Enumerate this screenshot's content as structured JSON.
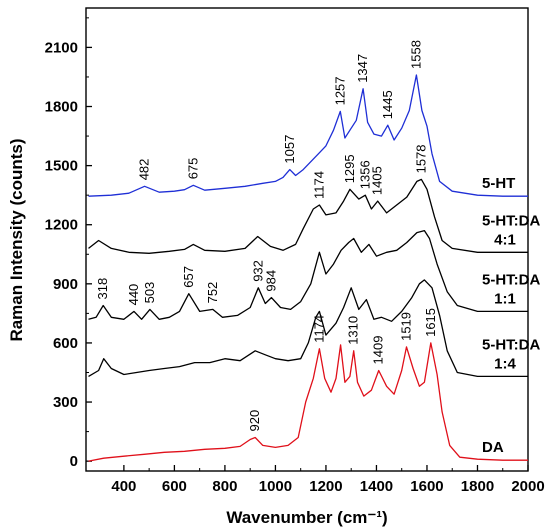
{
  "chart_data": {
    "type": "line",
    "xlabel": "Wavenumber (cm⁻¹)",
    "ylabel": "Raman Intensity (counts)",
    "xlim": [
      250,
      2000
    ],
    "ylim": [
      -50,
      2300
    ],
    "xticks": [
      400,
      600,
      800,
      1000,
      1200,
      1400,
      1600,
      1800,
      2000
    ],
    "yticks": [
      0,
      300,
      600,
      900,
      1200,
      1500,
      1800,
      2100
    ],
    "grid": false,
    "legend": "none (series labels printed at right)",
    "series": [
      {
        "name": "5-HT",
        "label_lines": [
          "5-HT"
        ],
        "color": "#1f2fd6",
        "points": [
          [
            260,
            1345
          ],
          [
            350,
            1350
          ],
          [
            420,
            1360
          ],
          [
            482,
            1395
          ],
          [
            540,
            1365
          ],
          [
            600,
            1370
          ],
          [
            640,
            1378
          ],
          [
            675,
            1400
          ],
          [
            720,
            1375
          ],
          [
            800,
            1385
          ],
          [
            880,
            1395
          ],
          [
            950,
            1410
          ],
          [
            1000,
            1420
          ],
          [
            1030,
            1440
          ],
          [
            1057,
            1480
          ],
          [
            1080,
            1450
          ],
          [
            1110,
            1480
          ],
          [
            1140,
            1520
          ],
          [
            1170,
            1560
          ],
          [
            1200,
            1600
          ],
          [
            1230,
            1680
          ],
          [
            1257,
            1775
          ],
          [
            1275,
            1640
          ],
          [
            1300,
            1690
          ],
          [
            1320,
            1730
          ],
          [
            1347,
            1890
          ],
          [
            1365,
            1720
          ],
          [
            1390,
            1660
          ],
          [
            1420,
            1650
          ],
          [
            1445,
            1705
          ],
          [
            1470,
            1630
          ],
          [
            1500,
            1690
          ],
          [
            1530,
            1780
          ],
          [
            1558,
            1960
          ],
          [
            1580,
            1780
          ],
          [
            1600,
            1700
          ],
          [
            1620,
            1560
          ],
          [
            1650,
            1420
          ],
          [
            1700,
            1370
          ],
          [
            1800,
            1350
          ],
          [
            1900,
            1345
          ],
          [
            2000,
            1345
          ]
        ],
        "peak_labels": [
          {
            "x": 482,
            "text": "482"
          },
          {
            "x": 675,
            "text": "675"
          },
          {
            "x": 1057,
            "text": "1057"
          },
          {
            "x": 1257,
            "text": "1257"
          },
          {
            "x": 1347,
            "text": "1347"
          },
          {
            "x": 1445,
            "text": "1445"
          },
          {
            "x": 1558,
            "text": "1558"
          }
        ]
      },
      {
        "name": "5-HT:DA 4:1",
        "label_lines": [
          "5-HT:DA",
          "4:1"
        ],
        "color": "#000000",
        "points": [
          [
            260,
            1080
          ],
          [
            300,
            1120
          ],
          [
            350,
            1080
          ],
          [
            420,
            1060
          ],
          [
            500,
            1055
          ],
          [
            580,
            1065
          ],
          [
            640,
            1075
          ],
          [
            675,
            1100
          ],
          [
            720,
            1070
          ],
          [
            800,
            1065
          ],
          [
            880,
            1080
          ],
          [
            930,
            1140
          ],
          [
            980,
            1090
          ],
          [
            1030,
            1070
          ],
          [
            1080,
            1100
          ],
          [
            1110,
            1180
          ],
          [
            1150,
            1280
          ],
          [
            1174,
            1300
          ],
          [
            1200,
            1250
          ],
          [
            1240,
            1260
          ],
          [
            1270,
            1320
          ],
          [
            1295,
            1380
          ],
          [
            1330,
            1330
          ],
          [
            1356,
            1350
          ],
          [
            1380,
            1280
          ],
          [
            1405,
            1320
          ],
          [
            1440,
            1260
          ],
          [
            1480,
            1300
          ],
          [
            1520,
            1340
          ],
          [
            1560,
            1420
          ],
          [
            1578,
            1430
          ],
          [
            1600,
            1380
          ],
          [
            1630,
            1240
          ],
          [
            1660,
            1120
          ],
          [
            1700,
            1080
          ],
          [
            1800,
            1060
          ],
          [
            1900,
            1060
          ],
          [
            2000,
            1060
          ]
        ],
        "peak_labels": [
          {
            "x": 1174,
            "text": "1174"
          },
          {
            "x": 1295,
            "text": "1295"
          },
          {
            "x": 1356,
            "text": "1356"
          },
          {
            "x": 1405,
            "text": "1405"
          },
          {
            "x": 1578,
            "text": "1578"
          }
        ]
      },
      {
        "name": "5-HT:DA 1:1",
        "label_lines": [
          "5-HT:DA",
          "1:1"
        ],
        "color": "#000000",
        "points": [
          [
            260,
            720
          ],
          [
            290,
            730
          ],
          [
            318,
            790
          ],
          [
            350,
            730
          ],
          [
            400,
            720
          ],
          [
            440,
            760
          ],
          [
            470,
            720
          ],
          [
            503,
            770
          ],
          [
            540,
            720
          ],
          [
            580,
            730
          ],
          [
            620,
            760
          ],
          [
            657,
            850
          ],
          [
            700,
            760
          ],
          [
            752,
            770
          ],
          [
            790,
            730
          ],
          [
            850,
            740
          ],
          [
            900,
            780
          ],
          [
            932,
            880
          ],
          [
            960,
            800
          ],
          [
            984,
            830
          ],
          [
            1020,
            780
          ],
          [
            1060,
            770
          ],
          [
            1100,
            810
          ],
          [
            1140,
            900
          ],
          [
            1174,
            1060
          ],
          [
            1200,
            950
          ],
          [
            1230,
            1000
          ],
          [
            1260,
            1070
          ],
          [
            1290,
            1110
          ],
          [
            1310,
            1130
          ],
          [
            1340,
            1060
          ],
          [
            1370,
            1100
          ],
          [
            1400,
            1040
          ],
          [
            1440,
            1060
          ],
          [
            1480,
            1070
          ],
          [
            1520,
            1110
          ],
          [
            1560,
            1160
          ],
          [
            1590,
            1170
          ],
          [
            1610,
            1130
          ],
          [
            1640,
            1000
          ],
          [
            1680,
            860
          ],
          [
            1720,
            790
          ],
          [
            1800,
            760
          ],
          [
            1900,
            760
          ],
          [
            2000,
            760
          ]
        ],
        "peak_labels": [
          {
            "x": 318,
            "text": "318"
          },
          {
            "x": 440,
            "text": "440"
          },
          {
            "x": 503,
            "text": "503"
          },
          {
            "x": 657,
            "text": "657"
          },
          {
            "x": 752,
            "text": "752"
          },
          {
            "x": 932,
            "text": "932"
          },
          {
            "x": 984,
            "text": "984"
          }
        ]
      },
      {
        "name": "5-HT:DA 1:4",
        "label_lines": [
          "5-HT:DA",
          "1:4"
        ],
        "color": "#000000",
        "points": [
          [
            260,
            430
          ],
          [
            300,
            460
          ],
          [
            320,
            520
          ],
          [
            350,
            470
          ],
          [
            400,
            440
          ],
          [
            450,
            450
          ],
          [
            500,
            460
          ],
          [
            560,
            470
          ],
          [
            620,
            480
          ],
          [
            680,
            500
          ],
          [
            740,
            500
          ],
          [
            800,
            520
          ],
          [
            860,
            510
          ],
          [
            920,
            560
          ],
          [
            960,
            540
          ],
          [
            1000,
            520
          ],
          [
            1050,
            510
          ],
          [
            1100,
            520
          ],
          [
            1130,
            600
          ],
          [
            1160,
            730
          ],
          [
            1174,
            760
          ],
          [
            1200,
            640
          ],
          [
            1240,
            700
          ],
          [
            1270,
            780
          ],
          [
            1300,
            880
          ],
          [
            1330,
            770
          ],
          [
            1360,
            820
          ],
          [
            1390,
            720
          ],
          [
            1420,
            730
          ],
          [
            1460,
            710
          ],
          [
            1500,
            760
          ],
          [
            1540,
            830
          ],
          [
            1570,
            900
          ],
          [
            1590,
            920
          ],
          [
            1620,
            880
          ],
          [
            1650,
            740
          ],
          [
            1680,
            560
          ],
          [
            1720,
            450
          ],
          [
            1800,
            430
          ],
          [
            1900,
            430
          ],
          [
            2000,
            430
          ]
        ],
        "peak_labels": []
      },
      {
        "name": "DA",
        "label_lines": [
          "DA"
        ],
        "color": "#e0101a",
        "points": [
          [
            260,
            0
          ],
          [
            320,
            15
          ],
          [
            400,
            25
          ],
          [
            480,
            35
          ],
          [
            560,
            45
          ],
          [
            640,
            50
          ],
          [
            720,
            60
          ],
          [
            800,
            65
          ],
          [
            860,
            75
          ],
          [
            900,
            110
          ],
          [
            920,
            120
          ],
          [
            950,
            80
          ],
          [
            1000,
            70
          ],
          [
            1050,
            80
          ],
          [
            1090,
            120
          ],
          [
            1120,
            300
          ],
          [
            1150,
            420
          ],
          [
            1174,
            570
          ],
          [
            1195,
            420
          ],
          [
            1220,
            350
          ],
          [
            1240,
            420
          ],
          [
            1258,
            590
          ],
          [
            1275,
            400
          ],
          [
            1295,
            430
          ],
          [
            1310,
            560
          ],
          [
            1325,
            400
          ],
          [
            1350,
            330
          ],
          [
            1380,
            360
          ],
          [
            1409,
            460
          ],
          [
            1440,
            380
          ],
          [
            1470,
            340
          ],
          [
            1500,
            460
          ],
          [
            1519,
            580
          ],
          [
            1545,
            470
          ],
          [
            1570,
            380
          ],
          [
            1590,
            400
          ],
          [
            1615,
            600
          ],
          [
            1640,
            440
          ],
          [
            1660,
            250
          ],
          [
            1690,
            80
          ],
          [
            1730,
            20
          ],
          [
            1800,
            10
          ],
          [
            1900,
            5
          ],
          [
            2000,
            5
          ]
        ],
        "peak_labels": [
          {
            "x": 920,
            "text": "920"
          },
          {
            "x": 1174,
            "text": "1174"
          },
          {
            "x": 1310,
            "text": "1310"
          },
          {
            "x": 1409,
            "text": "1409"
          },
          {
            "x": 1519,
            "text": "1519"
          },
          {
            "x": 1615,
            "text": "1615"
          }
        ]
      }
    ]
  }
}
